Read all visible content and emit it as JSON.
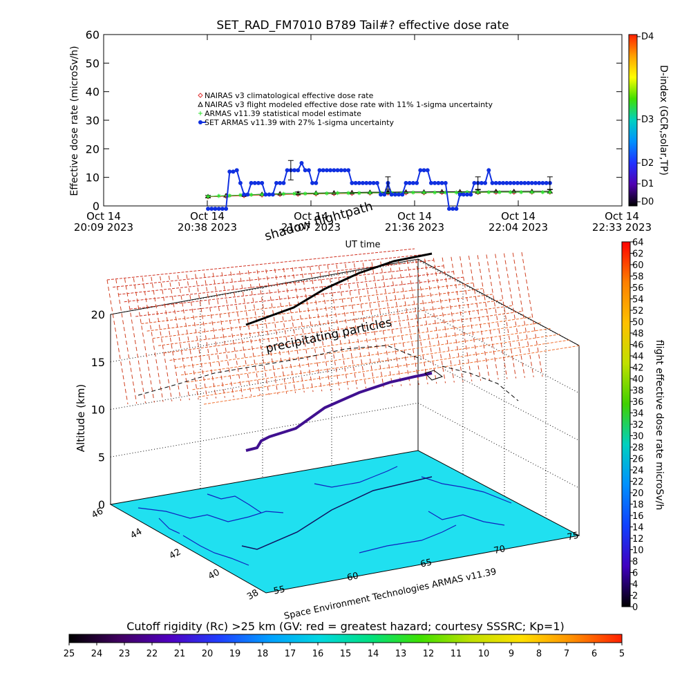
{
  "chart_data": [
    {
      "type": "line",
      "title": "SET_RAD_FM7010  B789 Tail#? effective dose rate",
      "xlabel": "UT time",
      "ylabel": "Effective dose rate (microSv/h)",
      "right_axis_label": "D-index (GCR,solar,TP)",
      "right_axis_ticks": [
        "D4",
        "D3",
        "D2",
        "D1",
        "D0"
      ],
      "right_colorbar_colors": [
        "#ff2000",
        "#ffa000",
        "#ffff00",
        "#40e000",
        "#00d0c0",
        "#0090ff",
        "#2030ff",
        "#5000b0",
        "#000000"
      ],
      "ylim": [
        0,
        60
      ],
      "y_ticks": [
        0,
        10,
        20,
        30,
        40,
        50,
        60
      ],
      "x_ticks": [
        "Oct 14 20:09 2023",
        "Oct 14 20:38 2023",
        "Oct 14 21:07 2023",
        "Oct 14 21:36 2023",
        "Oct 14 22:04 2023",
        "Oct 14 22:33 2023"
      ],
      "x_range_minutes": [
        0,
        144
      ],
      "legend_position": "upper-middle",
      "series": [
        {
          "name": "NAIRAS v3 climatological effective dose rate",
          "color": "#e03030",
          "marker": "diamond",
          "x": [
            29,
            34,
            39,
            44,
            49,
            54,
            59,
            64,
            69,
            74,
            79,
            84,
            89,
            94,
            99,
            104,
            109,
            114,
            119,
            124
          ],
          "values": [
            3.2,
            3.4,
            3.6,
            3.8,
            4.0,
            4.1,
            4.2,
            4.3,
            4.4,
            4.5,
            4.5,
            4.6,
            4.6,
            4.7,
            4.7,
            4.7,
            4.8,
            4.8,
            4.8,
            4.8
          ]
        },
        {
          "name": "NAIRAS v3 flight modeled effective dose rate with 11% 1-sigma uncertainty",
          "color": "#000000",
          "marker": "triangle",
          "x": [
            29,
            34,
            39,
            44,
            49,
            54,
            59,
            64,
            69,
            74,
            79,
            84,
            89,
            94,
            99,
            104,
            109,
            114,
            119,
            124
          ],
          "values": [
            3.3,
            3.6,
            3.8,
            4.1,
            4.3,
            4.4,
            4.5,
            4.6,
            4.7,
            4.8,
            4.8,
            4.9,
            4.9,
            5.0,
            5.0,
            5.0,
            5.1,
            5.1,
            5.1,
            5.1
          ],
          "error_bars_at_x": [
            29,
            54,
            79,
            104,
            124
          ],
          "error_bar_values": [
            0.4,
            0.5,
            0.5,
            0.6,
            0.6
          ]
        },
        {
          "name": "ARMAS v11.39 statistical model estimate",
          "color": "#30e030",
          "marker": "asterisk",
          "x": [
            29,
            32,
            35,
            38,
            41,
            44,
            47,
            50,
            53,
            56,
            59,
            62,
            65,
            68,
            71,
            74,
            77,
            80,
            83,
            86,
            89,
            92,
            95,
            98,
            101,
            104,
            107,
            110,
            113,
            116,
            119,
            122,
            124
          ],
          "values": [
            3.3,
            3.5,
            3.6,
            3.8,
            3.9,
            4.0,
            4.1,
            4.2,
            4.3,
            4.3,
            4.4,
            4.4,
            4.5,
            4.5,
            4.5,
            4.6,
            4.6,
            4.6,
            4.6,
            4.7,
            4.7,
            4.7,
            4.7,
            4.7,
            4.8,
            4.8,
            4.8,
            4.8,
            4.8,
            4.8,
            4.8,
            4.8,
            4.8
          ]
        },
        {
          "name": "SET ARMAS v11.39 with 27% 1-sigma uncertainty",
          "color": "#1030e0",
          "marker": "circle",
          "x": [
            29,
            30,
            31,
            32,
            33,
            34,
            35,
            36,
            37,
            38,
            39,
            40,
            41,
            42,
            43,
            44,
            45,
            46,
            47,
            48,
            49,
            50,
            51,
            52,
            53,
            54,
            55,
            56,
            57,
            58,
            59,
            60,
            61,
            62,
            63,
            64,
            65,
            66,
            67,
            68,
            69,
            70,
            71,
            72,
            73,
            74,
            75,
            76,
            77,
            78,
            79,
            80,
            81,
            82,
            83,
            84,
            85,
            86,
            87,
            88,
            89,
            90,
            91,
            92,
            93,
            94,
            95,
            96,
            97,
            98,
            99,
            100,
            101,
            102,
            103,
            104,
            105,
            106,
            107,
            108,
            109,
            110,
            111,
            112,
            113,
            114,
            115,
            116,
            117,
            118,
            119,
            120,
            121,
            122,
            123,
            124
          ],
          "values": [
            -1,
            -1,
            -1,
            -1,
            -1,
            -1,
            12,
            12,
            12.5,
            8,
            4,
            4,
            8,
            8,
            8,
            8,
            4,
            4,
            4,
            8,
            8,
            8,
            12.5,
            12.5,
            12.5,
            12.5,
            15,
            12.5,
            12.5,
            8,
            8,
            12.5,
            12.5,
            12.5,
            12.5,
            12.5,
            12.5,
            12.5,
            12.5,
            12.5,
            8,
            8,
            8,
            8,
            8,
            8,
            8,
            8,
            4,
            4,
            8,
            4,
            4,
            4,
            4,
            8,
            8,
            8,
            8,
            12.5,
            12.5,
            12.5,
            8,
            8,
            8,
            8,
            8,
            -1,
            -1,
            -1,
            4,
            4,
            4,
            4,
            8,
            8,
            8,
            8,
            12.5,
            8,
            8,
            8,
            8,
            8,
            8,
            8,
            8,
            8,
            8,
            8,
            8,
            8,
            8,
            8,
            8,
            8
          ],
          "error_bars_at_x": [
            52,
            79,
            104,
            124
          ],
          "error_bar_values": [
            3.4,
            2.2,
            2.2,
            2.2
          ]
        }
      ]
    },
    {
      "type": "scatter",
      "subtype": "3d-flight-track",
      "zlabel": "Altitude (km)",
      "z_ticks": [
        0,
        5,
        10,
        15,
        20
      ],
      "zlim": [
        0,
        22
      ],
      "lat_ticks": [
        46,
        44,
        42,
        40,
        38
      ],
      "lon_ticks": [
        55,
        60,
        65,
        70,
        75
      ],
      "annotations": [
        "shadow flightpath",
        "precipitating particles"
      ],
      "credit": "Space Environment Technologies ARMAS v11.39",
      "map_color": "#20e0f0",
      "flight_track": {
        "lon": [
          55.5,
          57,
          59,
          61,
          63,
          65,
          67,
          69,
          71
        ],
        "lat": [
          40.5,
          40.8,
          41.4,
          42.0,
          42.6,
          43.2,
          43.8,
          44.4,
          45.0
        ],
        "alt_km": [
          5.5,
          6.5,
          7.8,
          9.0,
          10.3,
          11.4,
          12.2,
          12.8,
          13.3
        ]
      },
      "colorbar": {
        "label": "flight effective dose rate microSv/h",
        "ticks": [
          64,
          62,
          60,
          58,
          56,
          54,
          52,
          50,
          48,
          46,
          44,
          42,
          40,
          38,
          36,
          34,
          32,
          30,
          28,
          26,
          24,
          22,
          20,
          18,
          16,
          14,
          12,
          10,
          8,
          6,
          4,
          2,
          0
        ],
        "colors": [
          "#ff0000",
          "#ff8000",
          "#ffc000",
          "#c0e000",
          "#40d000",
          "#00d0c0",
          "#0090ff",
          "#1040ff",
          "#4000c0",
          "#000000"
        ]
      },
      "bottom_colorbar": {
        "label": "Cutoff rigidity (Rc) >25 km (GV: red = greatest hazard; courtesy SSSRC; Kp=1)",
        "ticks": [
          25,
          24,
          23,
          22,
          21,
          20,
          19,
          18,
          17,
          16,
          15,
          14,
          13,
          12,
          11,
          10,
          9,
          8,
          7,
          6,
          5
        ],
        "colors": [
          "#000000",
          "#400060",
          "#5000c0",
          "#2040ff",
          "#00a0ff",
          "#00d8e0",
          "#00e080",
          "#40e000",
          "#c0e000",
          "#ffe000",
          "#ff9000",
          "#ff2000"
        ]
      }
    }
  ]
}
